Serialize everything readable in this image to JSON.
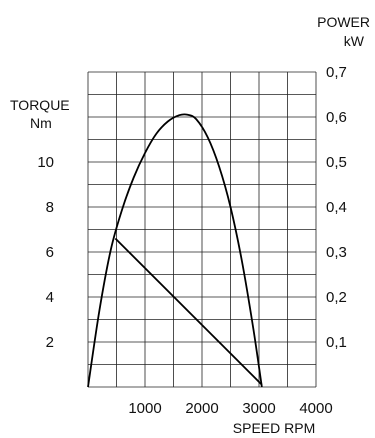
{
  "chart_data": {
    "type": "line",
    "x_axis": {
      "label_line1": "SPEED RPM",
      "range": [
        0,
        4000
      ],
      "ticks": [
        1000,
        2000,
        3000,
        4000
      ],
      "tick_labels": [
        "1000",
        "2000",
        "3000",
        "4000"
      ],
      "minor_step": 500
    },
    "y_axis_left": {
      "label_line1": "TORQUE",
      "label_line2": "Nm",
      "range": [
        0,
        14
      ],
      "ticks": [
        2,
        4,
        6,
        8,
        10
      ],
      "tick_labels": [
        "2",
        "4",
        "6",
        "8",
        "10"
      ],
      "minor_step": 1
    },
    "y_axis_right": {
      "label_line1": "POWER",
      "label_line2": "kW",
      "range": [
        0,
        0.7
      ],
      "ticks": [
        0.1,
        0.2,
        0.3,
        0.4,
        0.5,
        0.6,
        0.7
      ],
      "tick_labels": [
        "0,1",
        "0,2",
        "0,3",
        "0,4",
        "0,5",
        "0,6",
        "0,7"
      ]
    },
    "grid": true,
    "series": [
      {
        "axis": "left",
        "x": [
          480,
          3050
        ],
        "y": [
          6.6,
          0.1
        ]
      },
      {
        "axis": "right",
        "x": [
          0,
          200,
          400,
          600,
          800,
          1000,
          1200,
          1400,
          1600,
          1750,
          1900,
          2100,
          2300,
          2500,
          2700,
          2900,
          3050
        ],
        "y": [
          0.0,
          0.17,
          0.305,
          0.395,
          0.465,
          0.52,
          0.563,
          0.59,
          0.604,
          0.605,
          0.595,
          0.555,
          0.49,
          0.4,
          0.28,
          0.13,
          0.0
        ]
      }
    ]
  }
}
